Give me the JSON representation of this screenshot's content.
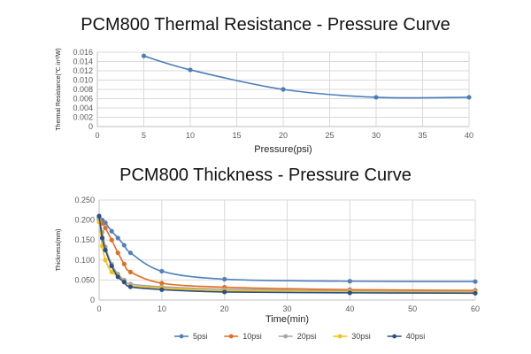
{
  "chart_data": [
    {
      "type": "line",
      "title": "PCM800 Thermal Resistance - Pressure Curve",
      "xlabel": "Pressure(psi)",
      "ylabel": "Thermal Resistance(℃·in²/W)",
      "xlim": [
        0,
        40
      ],
      "ylim": [
        0,
        0.016
      ],
      "x_ticks": [
        "0",
        "5",
        "10",
        "15",
        "20",
        "25",
        "30",
        "35",
        "40"
      ],
      "y_ticks": [
        "0",
        "0.002",
        "0.004",
        "0.006",
        "0.008",
        "0.010",
        "0.012",
        "0.014",
        "0.016"
      ],
      "grid": true,
      "series": [
        {
          "name": "Thermal Resistance",
          "color": "#4a7ebb",
          "x": [
            5,
            10,
            20,
            30,
            40
          ],
          "values": [
            0.0152,
            0.0122,
            0.008,
            0.0063,
            0.0063
          ]
        }
      ]
    },
    {
      "type": "line",
      "title": "PCM800 Thickness - Pressure Curve",
      "xlabel": "Time(min)",
      "ylabel": "Thickness(mm)",
      "xlim": [
        0,
        60
      ],
      "ylim": [
        0,
        0.25
      ],
      "x_ticks": [
        "0",
        "10",
        "20",
        "30",
        "40",
        "50",
        "60"
      ],
      "y_ticks": [
        "0",
        "0.050",
        "0.100",
        "0.150",
        "0.200",
        "0.250"
      ],
      "grid": true,
      "legend_position": "bottom",
      "series": [
        {
          "name": "5psi",
          "color": "#4e81bd",
          "x": [
            0,
            0.5,
            1,
            2,
            3,
            4,
            5,
            10,
            20,
            40,
            60
          ],
          "values": [
            0.205,
            0.2,
            0.193,
            0.172,
            0.155,
            0.137,
            0.118,
            0.072,
            0.052,
            0.047,
            0.046
          ]
        },
        {
          "name": "10psi",
          "color": "#e46c1f",
          "x": [
            0,
            0.5,
            1,
            2,
            3,
            4,
            5,
            10,
            20,
            40,
            60
          ],
          "values": [
            0.2,
            0.192,
            0.18,
            0.15,
            0.118,
            0.09,
            0.07,
            0.042,
            0.032,
            0.026,
            0.024
          ]
        },
        {
          "name": "20psi",
          "color": "#a5a5a5",
          "x": [
            0,
            0.5,
            1,
            2,
            3,
            4,
            5,
            10,
            20,
            40,
            60
          ],
          "values": [
            0.2,
            0.17,
            0.133,
            0.09,
            0.065,
            0.05,
            0.04,
            0.033,
            0.027,
            0.023,
            0.021
          ]
        },
        {
          "name": "30psi",
          "color": "#f2c314",
          "x": [
            0,
            0.5,
            1,
            2,
            3,
            4,
            5,
            10,
            20,
            40,
            60
          ],
          "values": [
            0.195,
            0.135,
            0.1,
            0.07,
            0.06,
            0.045,
            0.035,
            0.03,
            0.023,
            0.02,
            0.019
          ]
        },
        {
          "name": "40psi",
          "color": "#2e4f82",
          "x": [
            0,
            0.5,
            1,
            2,
            3,
            4,
            5,
            10,
            20,
            40,
            60
          ],
          "values": [
            0.21,
            0.155,
            0.125,
            0.085,
            0.058,
            0.045,
            0.033,
            0.026,
            0.02,
            0.018,
            0.017
          ]
        }
      ]
    }
  ]
}
